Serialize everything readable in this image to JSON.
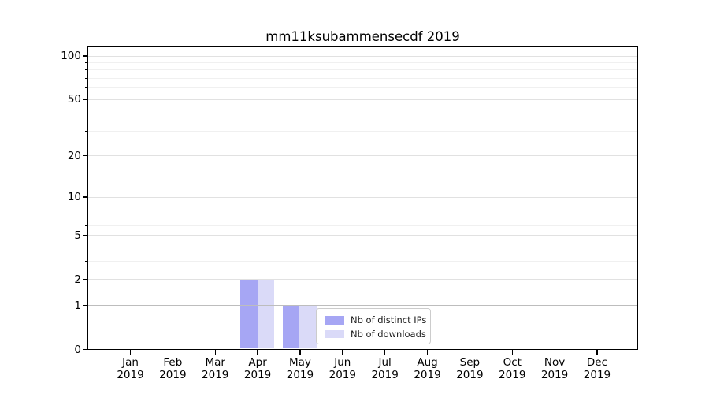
{
  "chart_data": {
    "type": "bar",
    "title": "mm11ksubammensecdf 2019",
    "categories": [
      "Jan 2019",
      "Feb 2019",
      "Mar 2019",
      "Apr 2019",
      "May 2019",
      "Jun 2019",
      "Jul 2019",
      "Aug 2019",
      "Sep 2019",
      "Oct 2019",
      "Nov 2019",
      "Dec 2019"
    ],
    "x_tick_months": [
      "Jan",
      "Feb",
      "Mar",
      "Apr",
      "May",
      "Jun",
      "Jul",
      "Aug",
      "Sep",
      "Oct",
      "Nov",
      "Dec"
    ],
    "x_tick_year": "2019",
    "series": [
      {
        "name": "Nb of distinct IPs",
        "color": "#a6a6f4",
        "values": [
          0,
          0,
          0,
          2,
          1,
          0,
          0,
          0,
          0,
          0,
          0,
          0
        ]
      },
      {
        "name": "Nb of downloads",
        "color": "#dadaf8",
        "values": [
          0,
          0,
          0,
          2,
          1,
          0,
          0,
          0,
          0,
          0,
          0,
          0
        ]
      }
    ],
    "yscale": "log1p",
    "ylim": [
      0,
      116
    ],
    "y_major_ticks": [
      0,
      1,
      2,
      5,
      10,
      20,
      50,
      100
    ],
    "y_minor_ticks": [
      3,
      4,
      6,
      7,
      8,
      9,
      30,
      40,
      60,
      70,
      80,
      90
    ],
    "grid": "horizontal",
    "legend_position": "lower center",
    "bar_values_note": "Apr 2019: distinct IPs = 2, downloads = 2; May 2019: distinct IPs = 1, downloads = 1; all other months = 0"
  },
  "colors": {
    "bar_distinct_ips": "#a6a6f4",
    "bar_downloads": "#dadaf8",
    "grid_major": "#e1e1e1",
    "grid_minor": "#f0f0f0",
    "grid_unit_line": "#bdbdbd",
    "spine": "#000000",
    "text": "#000000",
    "legend_border": "#cccccc",
    "legend_background": "rgba(255,255,255,0.8)"
  }
}
